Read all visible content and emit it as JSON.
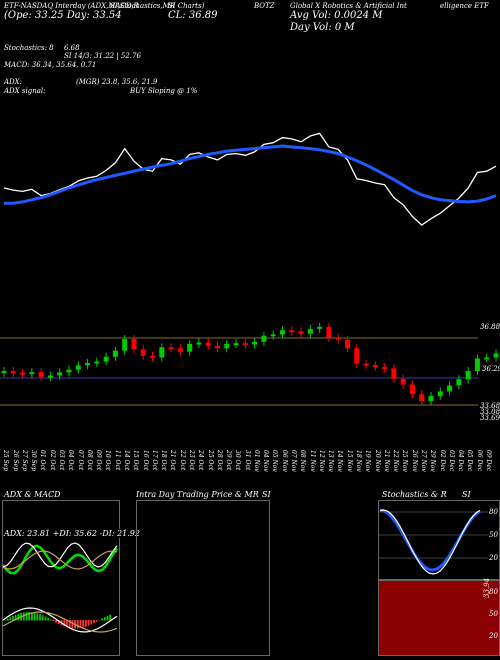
{
  "header": {
    "top_left": "ETF-NASDAQ Interday (ADX,MACD,R",
    "top_left2": "SI,Stochastics,MR",
    "top_mid": "SI Charts)",
    "ticker": "BOTZ",
    "desc": "Global X Robotics & Artificial Int",
    "desc2": "elligence ETF",
    "open_line": "(Ope: 33.25 Day: 33.54",
    "close_line": "CL: 36.89",
    "avg_vol": "Avg Vol: 0.0024 M",
    "day_vol": "Day Vol: 0   M"
  },
  "indicators": {
    "stoch_label": "Stochastics: 8",
    "stoch_val": "6.68",
    "rsi_label": "SI 14/3: 31.22 | 52.76",
    "macd_line": "MACD: 36.34, 35.64, 0.71",
    "adx_label": "ADX:",
    "adx_vals": "(MGR) 23.8, 35.6, 21.9",
    "adx_signal": "ADX signal:",
    "buy_signal": "BUY Sloping @ 1%"
  },
  "price_levels": [
    "36.88",
    "36.29",
    "33.68",
    "33.08",
    "33.69"
  ],
  "date_labels": [
    "24 Sep",
    "25 Sep",
    "26 Sep",
    "27 Sep",
    "30 Sep",
    "01 Oct",
    "02 Oct",
    "03 Oct",
    "04 Oct",
    "07 Oct",
    "08 Oct",
    "09 Oct",
    "10 Oct",
    "11 Oct",
    "14 Oct",
    "15 Oct",
    "16 Oct",
    "17 Oct",
    "18 Oct",
    "21 Oct",
    "22 Oct",
    "23 Oct",
    "24 Oct",
    "25 Oct",
    "28 Oct",
    "29 Oct",
    "30 Oct",
    "31 Oct",
    "01 Nov",
    "04 Nov",
    "05 Nov",
    "06 Nov",
    "07 Nov",
    "08 Nov",
    "11 Nov",
    "12 Nov",
    "13 Nov",
    "14 Nov",
    "15 Nov",
    "18 Nov",
    "19 Nov",
    "20 Nov",
    "21 Nov",
    "22 Nov",
    "25 Nov",
    "26 Nov",
    "27 Nov",
    "29 Nov",
    "02 Dec",
    "03 Dec",
    "04 Dec",
    "05 Dec",
    "06 Dec",
    "09 Dec"
  ],
  "panels": {
    "adx_title": "ADX  & MACD",
    "adx_readout": "ADX: 23.81  +DI: 35.62  -DI: 21.92",
    "mr_title": "Intra  Day Trading Price  & MR",
    "si_title": "SI",
    "stoch_title": "Stochastics & R",
    "stoch_si": "SI",
    "stoch_ticks": [
      "80",
      "50",
      "20"
    ],
    "rsi_ticks": [
      "80",
      "50",
      "20"
    ],
    "rsi_side": "33.94"
  },
  "colors": {
    "up": "#00cc00",
    "down": "#ff0000",
    "ma": "#1e5aff",
    "rsi_bg": "#8b0000"
  },
  "chart_data": {
    "type": "candlestick",
    "ma_line": [
      33.52,
      33.52,
      33.55,
      33.6,
      33.65,
      33.72,
      33.8,
      33.88,
      33.95,
      34.02,
      34.08,
      34.13,
      34.18,
      34.23,
      34.28,
      34.33,
      34.38,
      34.42,
      34.46,
      34.52,
      34.58,
      34.63,
      34.68,
      34.72,
      34.76,
      34.78,
      34.8,
      34.82,
      34.84,
      34.86,
      34.88,
      34.86,
      34.84,
      34.82,
      34.79,
      34.75,
      34.7,
      34.62,
      34.53,
      34.43,
      34.32,
      34.2,
      34.08,
      33.95,
      33.82,
      33.72,
      33.65,
      33.6,
      33.58,
      33.56,
      33.55,
      33.57,
      33.62,
      33.7
    ],
    "close_line": [
      33.88,
      33.83,
      33.8,
      33.85,
      33.7,
      33.75,
      33.84,
      33.92,
      34.05,
      34.12,
      34.16,
      34.3,
      34.48,
      34.82,
      34.52,
      34.33,
      34.28,
      34.58,
      34.55,
      34.45,
      34.68,
      34.72,
      34.62,
      34.55,
      34.68,
      34.7,
      34.66,
      34.74,
      34.92,
      34.96,
      35.08,
      35.05,
      34.98,
      35.12,
      35.18,
      34.86,
      34.8,
      34.55,
      34.1,
      34.06,
      34.0,
      33.96,
      33.65,
      33.48,
      33.2,
      33.0,
      33.15,
      33.28,
      33.46,
      33.64,
      33.88,
      34.25,
      34.28,
      34.4
    ]
  }
}
